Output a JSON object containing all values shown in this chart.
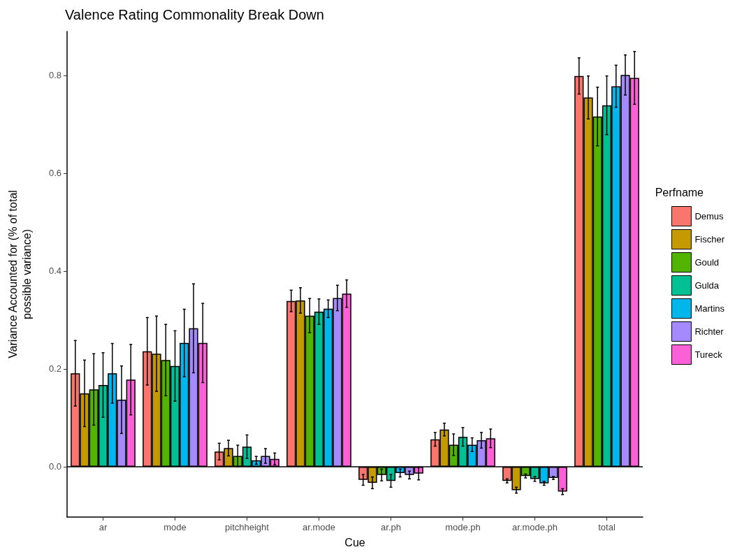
{
  "chart_data": {
    "type": "bar",
    "title": "Valence Rating Commonality Break Down",
    "xlabel": "Cue",
    "ylabel": "Variance Accounted for (% of total possible variance)",
    "legend_title": "Perfname",
    "legend": "right",
    "grid": false,
    "categories": [
      "ar",
      "mode",
      "pitchheight",
      "ar.mode",
      "ar.ph",
      "mode.ph",
      "ar.mode.ph",
      "total"
    ],
    "ylim": [
      -0.103,
      0.89
    ],
    "yticks": [
      {
        "value": 0,
        "label": "0.0"
      },
      {
        "value": 0.2,
        "label": "0.2"
      },
      {
        "value": 0.4,
        "label": "0.4"
      },
      {
        "value": 0.6,
        "label": "0.6"
      },
      {
        "value": 0.8,
        "label": "0.8"
      }
    ],
    "ref_lines": [
      {
        "axis": "y",
        "value": 0,
        "color": "#000000"
      }
    ],
    "series": [
      {
        "name": "Demus",
        "color": "#f8766d",
        "values": [
          0.191,
          0.236,
          0.031,
          0.339,
          -0.027,
          0.056,
          -0.029,
          0.799
        ],
        "errors": [
          0.067,
          0.069,
          0.017,
          0.022,
          0.011,
          0.014,
          0.004,
          0.037
        ]
      },
      {
        "name": "Fischer",
        "color": "#c49a00",
        "values": [
          0.15,
          0.231,
          0.038,
          0.34,
          -0.033,
          0.076,
          -0.048,
          0.755
        ],
        "errors": [
          0.068,
          0.077,
          0.016,
          0.026,
          0.012,
          0.013,
          0.006,
          0.044
        ]
      },
      {
        "name": "Gould",
        "color": "#53b400",
        "values": [
          0.158,
          0.218,
          0.022,
          0.309,
          -0.017,
          0.045,
          -0.019,
          0.716
        ],
        "errors": [
          0.073,
          0.073,
          0.022,
          0.035,
          0.012,
          0.022,
          0.004,
          0.06
        ]
      },
      {
        "name": "Gulda",
        "color": "#00c094",
        "values": [
          0.167,
          0.206,
          0.041,
          0.317,
          -0.029,
          0.061,
          -0.025,
          0.739
        ],
        "errors": [
          0.066,
          0.072,
          0.024,
          0.026,
          0.013,
          0.019,
          0.005,
          0.06
        ]
      },
      {
        "name": "Martins",
        "color": "#00b6eb",
        "values": [
          0.191,
          0.253,
          0.013,
          0.323,
          -0.013,
          0.045,
          -0.034,
          0.778
        ],
        "errors": [
          0.061,
          0.069,
          0.008,
          0.018,
          0.008,
          0.014,
          0.004,
          0.043
        ]
      },
      {
        "name": "Richter",
        "color": "#a58aff",
        "values": [
          0.137,
          0.283,
          0.022,
          0.345,
          -0.017,
          0.054,
          -0.023,
          0.801
        ],
        "errors": [
          0.069,
          0.091,
          0.015,
          0.026,
          0.008,
          0.016,
          0.003,
          0.041
        ]
      },
      {
        "name": "Tureck",
        "color": "#fb61d7",
        "values": [
          0.178,
          0.253,
          0.016,
          0.354,
          -0.014,
          0.058,
          -0.051,
          0.795
        ],
        "errors": [
          0.072,
          0.081,
          0.012,
          0.028,
          0.013,
          0.019,
          0.006,
          0.054
        ]
      }
    ]
  }
}
